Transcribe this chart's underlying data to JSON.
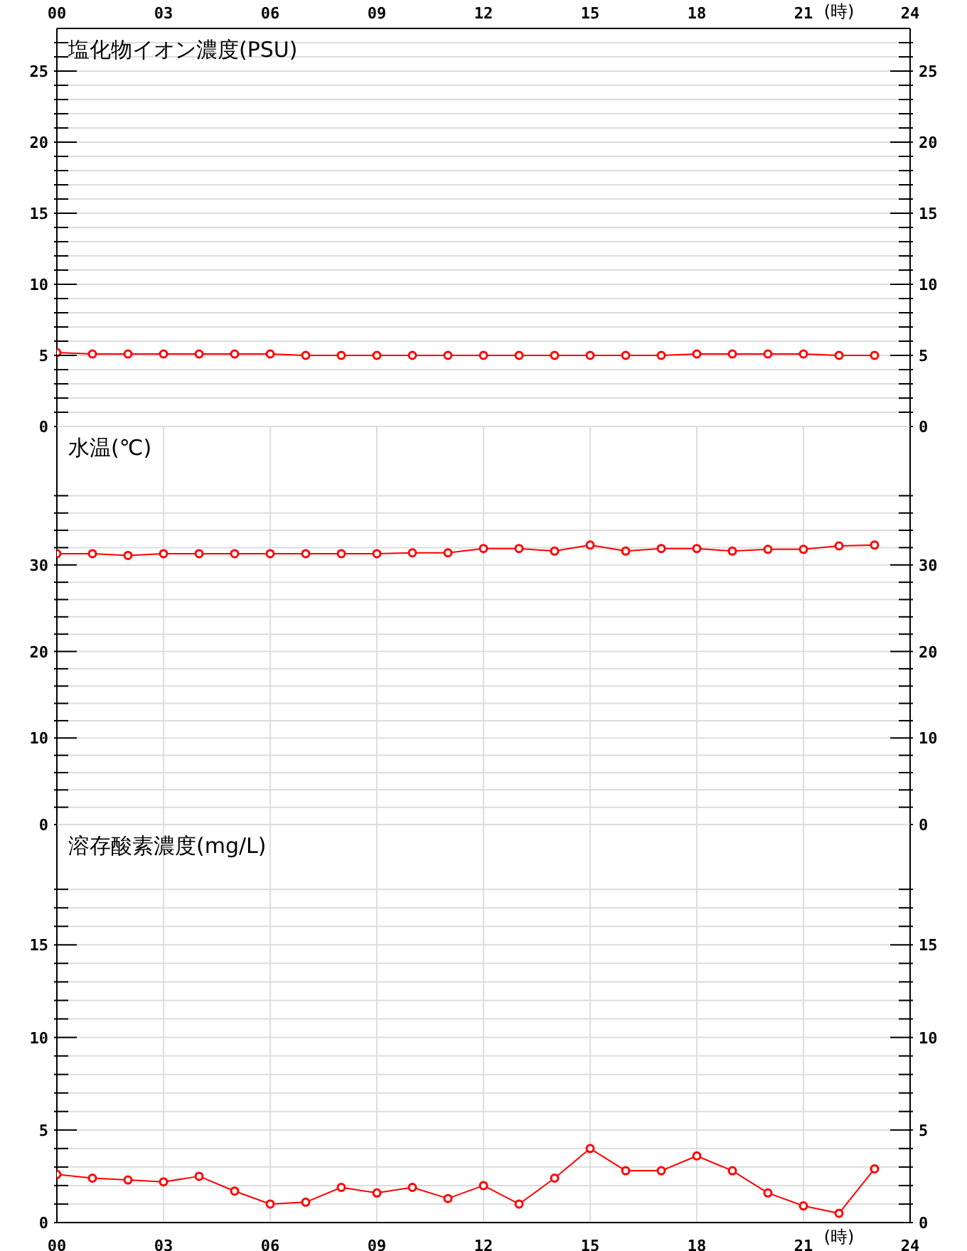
{
  "chart_data": [
    {
      "type": "line",
      "title": "塩化物イオン濃度(PSU)",
      "x": [
        0,
        1,
        2,
        3,
        4,
        5,
        6,
        7,
        8,
        9,
        10,
        11,
        12,
        13,
        14,
        15,
        16,
        17,
        18,
        19,
        20,
        21,
        22,
        23
      ],
      "xlim": [
        0,
        24
      ],
      "tick_labels": "x2 y y2",
      "x2lim": [
        0,
        24
      ],
      "x2ticks": [
        {
          "value": 0,
          "label": "00"
        },
        {
          "value": 3,
          "label": "03"
        },
        {
          "value": 6,
          "label": "06"
        },
        {
          "value": 9,
          "label": "09"
        },
        {
          "value": 12,
          "label": "12"
        },
        {
          "value": 15,
          "label": "15"
        },
        {
          "value": 18,
          "label": "18"
        },
        {
          "value": 21,
          "label": "21"
        },
        {
          "value": 24,
          "label": "24"
        }
      ],
      "x2label": "(時)",
      "ylim": [
        0,
        28
      ],
      "yticks": [
        0,
        {
          "value": 1,
          "label": null
        },
        {
          "value": 2,
          "label": null
        },
        {
          "value": 3,
          "label": null
        },
        {
          "value": 4,
          "label": null
        },
        5,
        {
          "value": 6,
          "label": null
        },
        {
          "value": 7,
          "label": null
        },
        {
          "value": 8,
          "label": null
        },
        {
          "value": 9,
          "label": null
        },
        10,
        {
          "value": 11,
          "label": null
        },
        {
          "value": 12,
          "label": null
        },
        {
          "value": 13,
          "label": null
        },
        {
          "value": 14,
          "label": null
        },
        15,
        {
          "value": 16,
          "label": null
        },
        {
          "value": 17,
          "label": null
        },
        {
          "value": 18,
          "label": null
        },
        {
          "value": 19,
          "label": null
        },
        20,
        {
          "value": 21,
          "label": null
        },
        {
          "value": 22,
          "label": null
        },
        {
          "value": 23,
          "label": null
        },
        {
          "value": 24,
          "label": null
        },
        25,
        {
          "value": 26,
          "label": null
        },
        {
          "value": 27,
          "label": null
        }
      ],
      "y2lim": [
        0,
        28
      ],
      "y2ticks": [
        0,
        5,
        10,
        15,
        20,
        25
      ],
      "grid": true,
      "marker": "circle",
      "series": [
        {
          "color": "#ff0000",
          "values": [
            5.2,
            5.1,
            5.1,
            5.1,
            5.1,
            5.1,
            5.1,
            5.0,
            5.0,
            5.0,
            5.0,
            5.0,
            5.0,
            5.0,
            5.0,
            5.0,
            5.0,
            5.0,
            5.1,
            5.1,
            5.1,
            5.1,
            5.0,
            5.0
          ]
        }
      ]
    },
    {
      "type": "line",
      "title": "水温(℃)",
      "x": [
        0,
        1,
        2,
        3,
        4,
        5,
        6,
        7,
        8,
        9,
        10,
        11,
        12,
        13,
        14,
        15,
        16,
        17,
        18,
        19,
        20,
        21,
        22,
        23
      ],
      "xlim": [
        0,
        24
      ],
      "xticks": [
        0,
        3,
        6,
        9,
        12,
        15,
        18,
        21,
        24
      ],
      "tick_labels": "y",
      "ylim": [
        0,
        46
      ],
      "yticks": [
        0,
        {
          "value": 2,
          "label": null
        },
        {
          "value": 4,
          "label": null
        },
        {
          "value": 6,
          "label": null
        },
        {
          "value": 8,
          "label": null
        },
        10,
        {
          "value": 12,
          "label": null
        },
        {
          "value": 14,
          "label": null
        },
        {
          "value": 16,
          "label": null
        },
        {
          "value": 18,
          "label": null
        },
        20,
        {
          "value": 22,
          "label": null
        },
        {
          "value": 24,
          "label": null
        },
        {
          "value": 26,
          "label": null
        },
        {
          "value": 28,
          "label": null
        },
        30,
        {
          "value": 32,
          "label": null
        },
        {
          "value": 34,
          "label": null
        },
        {
          "value": 36,
          "label": null
        },
        {
          "value": 38,
          "label": null
        }
      ],
      "y2lim": [
        0,
        46
      ],
      "y2ticks": [
        0,
        10,
        20,
        30
      ],
      "grid": true,
      "marker": "circle",
      "series": [
        {
          "color": "#ff0000",
          "values": [
            31.3,
            31.3,
            31.1,
            31.3,
            31.3,
            31.3,
            31.3,
            31.3,
            31.3,
            31.3,
            31.4,
            31.4,
            31.9,
            31.9,
            31.6,
            32.3,
            31.6,
            31.9,
            31.9,
            31.6,
            31.8,
            31.8,
            32.2,
            32.3
          ]
        }
      ]
    },
    {
      "type": "line",
      "title": "溶存酸素濃度(mg/L)",
      "x": [
        0,
        1,
        2,
        3,
        4,
        5,
        6,
        7,
        8,
        9,
        10,
        11,
        12,
        13,
        14,
        15,
        16,
        17,
        18,
        19,
        20,
        21,
        22,
        23
      ],
      "xlim": [
        0,
        24
      ],
      "xticks": [
        {
          "value": 0,
          "label": "00"
        },
        {
          "value": 3,
          "label": "03"
        },
        {
          "value": 6,
          "label": "06"
        },
        {
          "value": 9,
          "label": "09"
        },
        {
          "value": 12,
          "label": "12"
        },
        {
          "value": 15,
          "label": "15"
        },
        {
          "value": 18,
          "label": "18"
        },
        {
          "value": 21,
          "label": "21"
        },
        {
          "value": 24,
          "label": "24"
        }
      ],
      "xlabel": "(時)",
      "ylim": [
        0,
        21.5
      ],
      "yticks": [
        0,
        {
          "value": 1,
          "label": null
        },
        {
          "value": 2,
          "label": null
        },
        {
          "value": 3,
          "label": null
        },
        {
          "value": 4,
          "label": null
        },
        5,
        {
          "value": 6,
          "label": null
        },
        {
          "value": 7,
          "label": null
        },
        {
          "value": 8,
          "label": null
        },
        {
          "value": 9,
          "label": null
        },
        10,
        {
          "value": 11,
          "label": null
        },
        {
          "value": 12,
          "label": null
        },
        {
          "value": 13,
          "label": null
        },
        {
          "value": 14,
          "label": null
        },
        15,
        {
          "value": 16,
          "label": null
        },
        {
          "value": 17,
          "label": null
        },
        {
          "value": 18,
          "label": null
        }
      ],
      "y2lim": [
        0,
        21.5
      ],
      "y2ticks": [
        0,
        5,
        10,
        15
      ],
      "grid": true,
      "marker": "circle",
      "series": [
        {
          "color": "#ff0000",
          "values": [
            2.6,
            2.4,
            2.3,
            2.2,
            2.5,
            1.7,
            1.0,
            1.1,
            1.9,
            1.6,
            1.9,
            1.3,
            2.0,
            1.0,
            2.4,
            4.0,
            2.8,
            2.8,
            3.6,
            2.8,
            1.6,
            0.9,
            0.5,
            2.9
          ]
        }
      ]
    }
  ]
}
